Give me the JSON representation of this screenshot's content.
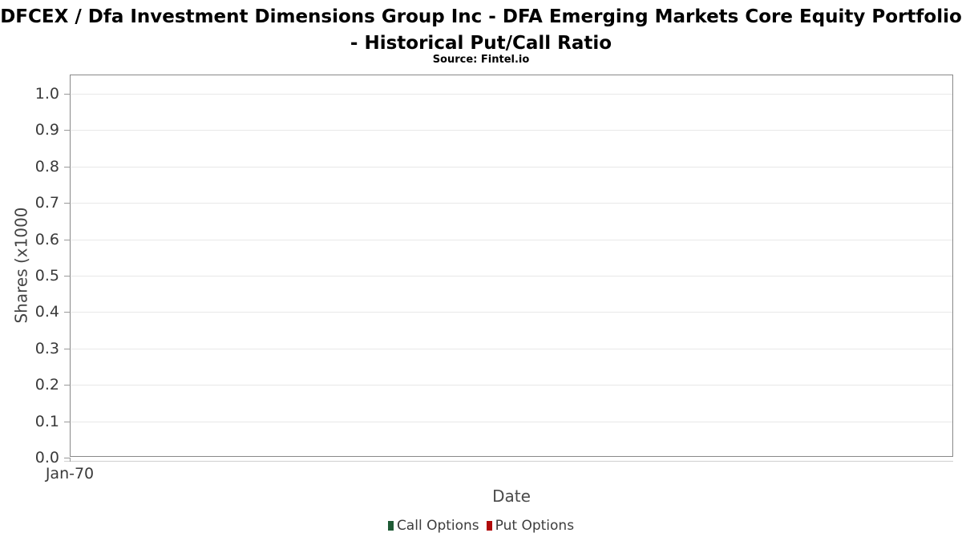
{
  "chart_data": {
    "type": "line",
    "title": "DFCEX / Dfa Investment Dimensions Group Inc - DFA Emerging Markets Core Equity Portfolio - Historical Put/Call Ratio",
    "subtitle": "Source: Fintel.io",
    "xlabel": "Date",
    "ylabel": "Shares (x1000",
    "ylim": [
      0.0,
      1.0
    ],
    "yticks": [
      "0.0",
      "0.1",
      "0.2",
      "0.3",
      "0.4",
      "0.5",
      "0.6",
      "0.7",
      "0.8",
      "0.9",
      "1.0"
    ],
    "xticks": [
      "Jan-70"
    ],
    "grid": true,
    "legend_position": "bottom",
    "series": [
      {
        "name": "Call Options",
        "color": "#1f5b35",
        "x": [],
        "values": []
      },
      {
        "name": "Put Options",
        "color": "#b00a0a",
        "x": [],
        "values": []
      }
    ]
  }
}
